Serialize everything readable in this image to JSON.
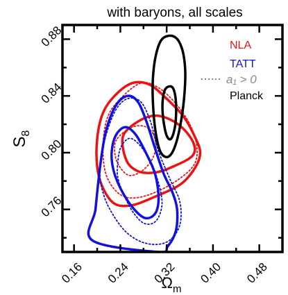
{
  "chart_data": {
    "type": "contour",
    "title": "with baryons, all scales",
    "xlabel_main": "Ω",
    "xlabel_sub": "m",
    "ylabel_main": "S",
    "ylabel_sub": "8",
    "xlim": [
      0.14,
      0.52
    ],
    "ylim": [
      0.73,
      0.89
    ],
    "xticks": [
      "0.16",
      "0.24",
      "0.32",
      "0.40",
      "0.48"
    ],
    "xtick_values": [
      0.16,
      0.24,
      0.32,
      0.4,
      0.48
    ],
    "yticks": [
      "0.76",
      "0.80",
      "0.84",
      "0.88"
    ],
    "ytick_values": [
      0.76,
      0.8,
      0.84,
      0.88
    ],
    "legend_position": "top-right",
    "legend": [
      {
        "label": "NLA",
        "color": "#ee1111",
        "style": "solid"
      },
      {
        "label": "TATT",
        "color": "#1111dd",
        "style": "solid"
      },
      {
        "label": "a₁ > 0",
        "color": "#888888",
        "style": "dotted"
      },
      {
        "label": "Planck",
        "color": "#000000",
        "style": "solid"
      }
    ],
    "series": [
      {
        "name": "NLA",
        "color": "#ee1111",
        "style": "solid",
        "width": 3.5,
        "contours": [
          [
            [
              0.23,
              0.84
            ],
            [
              0.26,
              0.849
            ],
            [
              0.29,
              0.848
            ],
            [
              0.32,
              0.838
            ],
            [
              0.35,
              0.825
            ],
            [
              0.37,
              0.81
            ],
            [
              0.378,
              0.8
            ],
            [
              0.37,
              0.79
            ],
            [
              0.345,
              0.778
            ],
            [
              0.3,
              0.769
            ],
            [
              0.26,
              0.763
            ],
            [
              0.23,
              0.764
            ],
            [
              0.21,
              0.775
            ],
            [
              0.2,
              0.79
            ],
            [
              0.2,
              0.81
            ],
            [
              0.21,
              0.828
            ]
          ],
          [
            [
              0.245,
              0.812
            ],
            [
              0.275,
              0.823
            ],
            [
              0.305,
              0.826
            ],
            [
              0.34,
              0.82
            ],
            [
              0.365,
              0.808
            ],
            [
              0.365,
              0.798
            ],
            [
              0.33,
              0.79
            ],
            [
              0.3,
              0.786
            ],
            [
              0.27,
              0.787
            ],
            [
              0.25,
              0.795
            ]
          ]
        ]
      },
      {
        "name": "NLA a₁ > 0",
        "color": "#ee1111",
        "style": "dotted",
        "width": 1.8,
        "contours": [
          [
            [
              0.24,
              0.838
            ],
            [
              0.275,
              0.849
            ],
            [
              0.305,
              0.846
            ],
            [
              0.335,
              0.835
            ],
            [
              0.36,
              0.82
            ],
            [
              0.372,
              0.805
            ],
            [
              0.368,
              0.792
            ],
            [
              0.34,
              0.781
            ],
            [
              0.3,
              0.772
            ],
            [
              0.262,
              0.768
            ],
            [
              0.235,
              0.772
            ],
            [
              0.215,
              0.785
            ],
            [
              0.21,
              0.805
            ],
            [
              0.218,
              0.825
            ]
          ],
          [
            [
              0.235,
              0.81
            ],
            [
              0.26,
              0.818
            ],
            [
              0.285,
              0.818
            ],
            [
              0.3,
              0.81
            ],
            [
              0.298,
              0.798
            ],
            [
              0.28,
              0.788
            ],
            [
              0.255,
              0.784
            ],
            [
              0.236,
              0.792
            ],
            [
              0.23,
              0.802
            ]
          ]
        ]
      },
      {
        "name": "TATT",
        "color": "#1111dd",
        "style": "solid",
        "width": 3.5,
        "contours": [
          [
            [
              0.192,
              0.738
            ],
            [
              0.197,
              0.76
            ],
            [
              0.205,
              0.79
            ],
            [
              0.215,
              0.815
            ],
            [
              0.232,
              0.833
            ],
            [
              0.252,
              0.84
            ],
            [
              0.27,
              0.836
            ],
            [
              0.285,
              0.822
            ],
            [
              0.3,
              0.803
            ],
            [
              0.315,
              0.785
            ],
            [
              0.33,
              0.772
            ],
            [
              0.338,
              0.76
            ],
            [
              0.336,
              0.745
            ],
            [
              0.322,
              0.734
            ],
            [
              0.305,
              0.73
            ]
          ],
          [
            [
              0.225,
              0.8
            ],
            [
              0.232,
              0.812
            ],
            [
              0.248,
              0.818
            ],
            [
              0.266,
              0.813
            ],
            [
              0.284,
              0.8
            ],
            [
              0.3,
              0.785
            ],
            [
              0.306,
              0.768
            ],
            [
              0.3,
              0.757
            ],
            [
              0.282,
              0.754
            ],
            [
              0.26,
              0.762
            ],
            [
              0.24,
              0.775
            ],
            [
              0.228,
              0.788
            ]
          ]
        ]
      },
      {
        "name": "TATT a₁ > 0",
        "color": "#1111dd",
        "style": "dotted",
        "width": 1.8,
        "contours": [
          [
            [
              0.205,
              0.79
            ],
            [
              0.215,
              0.812
            ],
            [
              0.232,
              0.83
            ],
            [
              0.252,
              0.838
            ],
            [
              0.275,
              0.836
            ],
            [
              0.292,
              0.822
            ],
            [
              0.305,
              0.802
            ],
            [
              0.325,
              0.782
            ],
            [
              0.343,
              0.765
            ],
            [
              0.342,
              0.748
            ],
            [
              0.32,
              0.737
            ],
            [
              0.285,
              0.736
            ],
            [
              0.25,
              0.744
            ],
            [
              0.222,
              0.76
            ],
            [
              0.208,
              0.775
            ]
          ],
          [
            [
              0.235,
              0.79
            ],
            [
              0.24,
              0.803
            ],
            [
              0.255,
              0.81
            ],
            [
              0.272,
              0.806
            ],
            [
              0.29,
              0.795
            ],
            [
              0.305,
              0.78
            ],
            [
              0.312,
              0.764
            ],
            [
              0.302,
              0.752
            ],
            [
              0.282,
              0.75
            ],
            [
              0.262,
              0.758
            ],
            [
              0.244,
              0.772
            ],
            [
              0.236,
              0.782
            ]
          ]
        ]
      },
      {
        "name": "Planck",
        "color": "#000000",
        "style": "solid",
        "width": 3.5,
        "contours": [
          [
            [
              0.312,
              0.88
            ],
            [
              0.332,
              0.882
            ],
            [
              0.346,
              0.874
            ],
            [
              0.352,
              0.858
            ],
            [
              0.35,
              0.838
            ],
            [
              0.343,
              0.818
            ],
            [
              0.333,
              0.803
            ],
            [
              0.322,
              0.797
            ],
            [
              0.31,
              0.8
            ],
            [
              0.302,
              0.812
            ],
            [
              0.297,
              0.83
            ],
            [
              0.296,
              0.85
            ],
            [
              0.301,
              0.868
            ]
          ],
          [
            [
              0.318,
              0.845
            ],
            [
              0.33,
              0.846
            ],
            [
              0.336,
              0.836
            ],
            [
              0.335,
              0.82
            ],
            [
              0.328,
              0.81
            ],
            [
              0.32,
              0.812
            ],
            [
              0.314,
              0.824
            ],
            [
              0.313,
              0.836
            ]
          ]
        ]
      }
    ]
  }
}
